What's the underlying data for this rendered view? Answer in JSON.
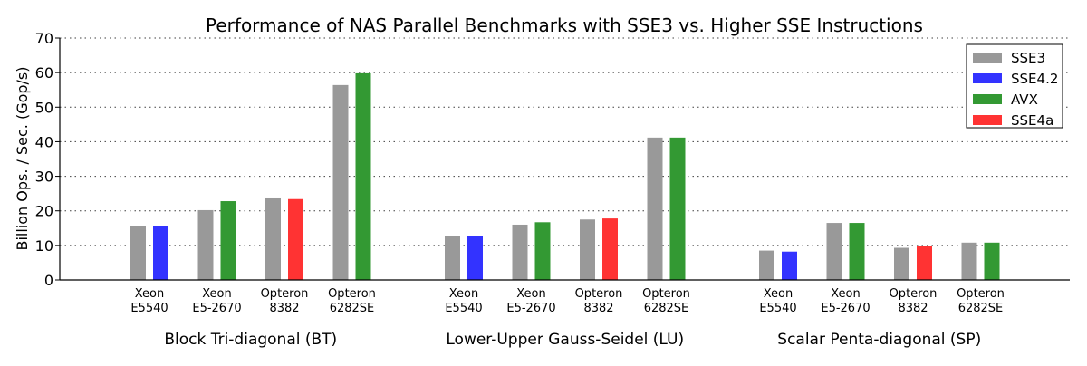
{
  "chart_data": {
    "type": "bar",
    "title": "Performance of NAS Parallel Benchmarks with SSE3 vs. Higher SSE Instructions",
    "xlabel": "",
    "ylabel": "Billion Ops. / Sec. (Gop/s)",
    "ylim": [
      0,
      70
    ],
    "yticks": [
      0,
      10,
      20,
      30,
      40,
      50,
      60,
      70
    ],
    "grid": "horizontal-dotted",
    "legend_position": "top-right",
    "legend": [
      {
        "name": "SSE3",
        "color": "#999999"
      },
      {
        "name": "SSE4.2",
        "color": "#3333ff"
      },
      {
        "name": "AVX",
        "color": "#339933"
      },
      {
        "name": "SSE4a",
        "color": "#ff3333"
      }
    ],
    "processors": [
      {
        "line1": "Xeon",
        "line2": "E5540"
      },
      {
        "line1": "Xeon",
        "line2": "E5-2670"
      },
      {
        "line1": "Opteron",
        "line2": "8382"
      },
      {
        "line1": "Opteron",
        "line2": "6282SE"
      }
    ],
    "groups": [
      {
        "name": "Block Tri-diagonal (BT)",
        "bars": [
          {
            "processor": 0,
            "baseline": 15.5,
            "higher": 15.5,
            "higher_series": "SSE4.2"
          },
          {
            "processor": 1,
            "baseline": 20.2,
            "higher": 22.8,
            "higher_series": "AVX"
          },
          {
            "processor": 2,
            "baseline": 23.6,
            "higher": 23.4,
            "higher_series": "SSE4a"
          },
          {
            "processor": 3,
            "baseline": 56.4,
            "higher": 59.8,
            "higher_series": "AVX"
          }
        ]
      },
      {
        "name": "Lower-Upper Gauss-Seidel (LU)",
        "bars": [
          {
            "processor": 0,
            "baseline": 12.8,
            "higher": 12.8,
            "higher_series": "SSE4.2"
          },
          {
            "processor": 1,
            "baseline": 16.0,
            "higher": 16.7,
            "higher_series": "AVX"
          },
          {
            "processor": 2,
            "baseline": 17.5,
            "higher": 17.8,
            "higher_series": "SSE4a"
          },
          {
            "processor": 3,
            "baseline": 41.2,
            "higher": 41.2,
            "higher_series": "AVX"
          }
        ]
      },
      {
        "name": "Scalar Penta-diagonal (SP)",
        "bars": [
          {
            "processor": 0,
            "baseline": 8.5,
            "higher": 8.2,
            "higher_series": "SSE4.2"
          },
          {
            "processor": 1,
            "baseline": 16.5,
            "higher": 16.5,
            "higher_series": "AVX"
          },
          {
            "processor": 2,
            "baseline": 9.3,
            "higher": 9.8,
            "higher_series": "SSE4a"
          },
          {
            "processor": 3,
            "baseline": 10.8,
            "higher": 10.8,
            "higher_series": "AVX"
          }
        ]
      }
    ]
  }
}
